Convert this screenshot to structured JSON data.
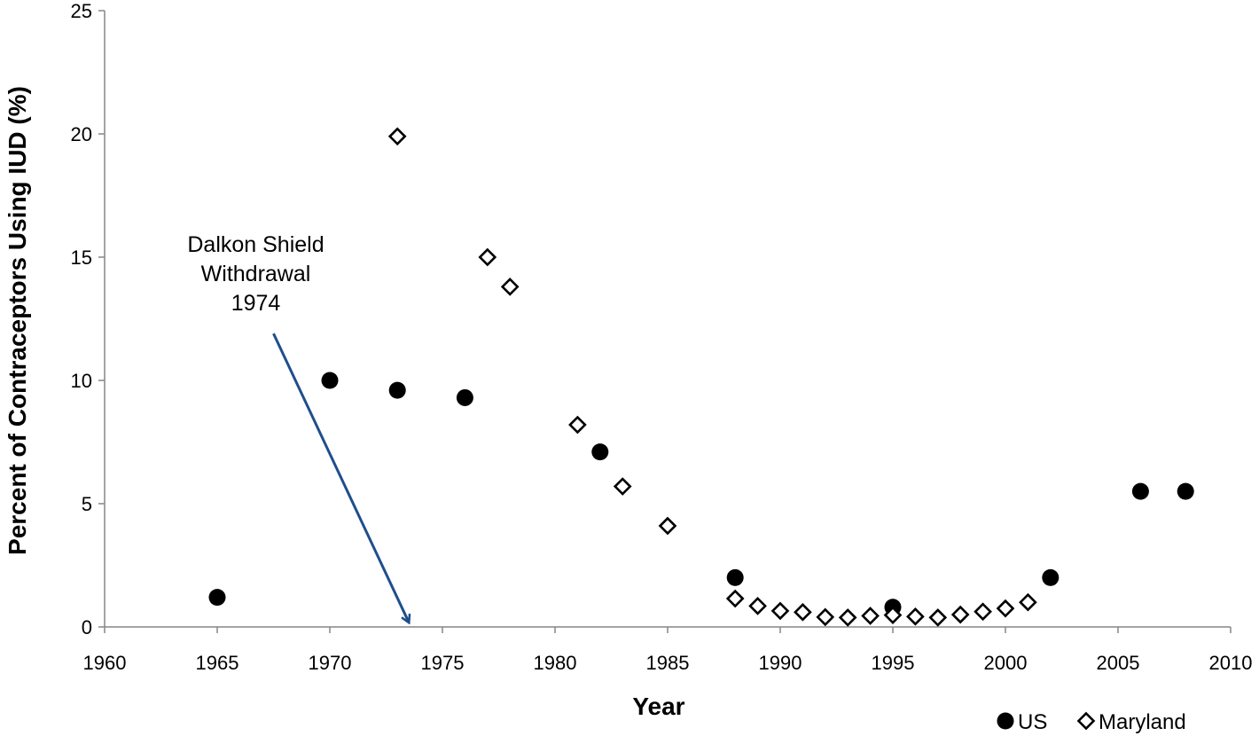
{
  "chart_data": {
    "type": "scatter",
    "title": "",
    "xlabel": "Year",
    "ylabel": "Percent of Contraceptors Using IUD (%)",
    "xlim": [
      1960,
      2010
    ],
    "ylim": [
      0,
      25
    ],
    "xticks": [
      1960,
      1965,
      1970,
      1975,
      1980,
      1985,
      1990,
      1995,
      2000,
      2005,
      2010
    ],
    "yticks": [
      0,
      5,
      10,
      15,
      20,
      25
    ],
    "grid": false,
    "legend_position": "bottom-right",
    "series": [
      {
        "name": "US",
        "marker": "filled-circle",
        "color": "#000000",
        "x": [
          1965,
          1970,
          1973,
          1976,
          1982,
          1988,
          1995,
          2002,
          2006,
          2008
        ],
        "y": [
          1.2,
          10.0,
          9.6,
          9.3,
          7.1,
          2.0,
          0.8,
          2.0,
          5.5,
          5.5
        ]
      },
      {
        "name": "Maryland",
        "marker": "open-diamond",
        "color": "#000000",
        "x": [
          1973,
          1977,
          1978,
          1981,
          1983,
          1985,
          1988,
          1989,
          1990,
          1991,
          1992,
          1993,
          1994,
          1995,
          1996,
          1997,
          1998,
          1999,
          2000,
          2001
        ],
        "y": [
          19.9,
          15.0,
          13.8,
          8.2,
          5.7,
          4.1,
          1.15,
          0.85,
          0.65,
          0.6,
          0.4,
          0.38,
          0.45,
          0.48,
          0.42,
          0.38,
          0.5,
          0.62,
          0.75,
          1.0
        ]
      }
    ],
    "annotations": [
      {
        "text_lines": [
          "Dalkon Shield",
          "Withdrawal",
          "1974"
        ],
        "arrow_from": [
          1967.5,
          11.9
        ],
        "arrow_to": [
          1973.5,
          0.2
        ],
        "arrow_color": "#1f4e8c"
      }
    ]
  }
}
